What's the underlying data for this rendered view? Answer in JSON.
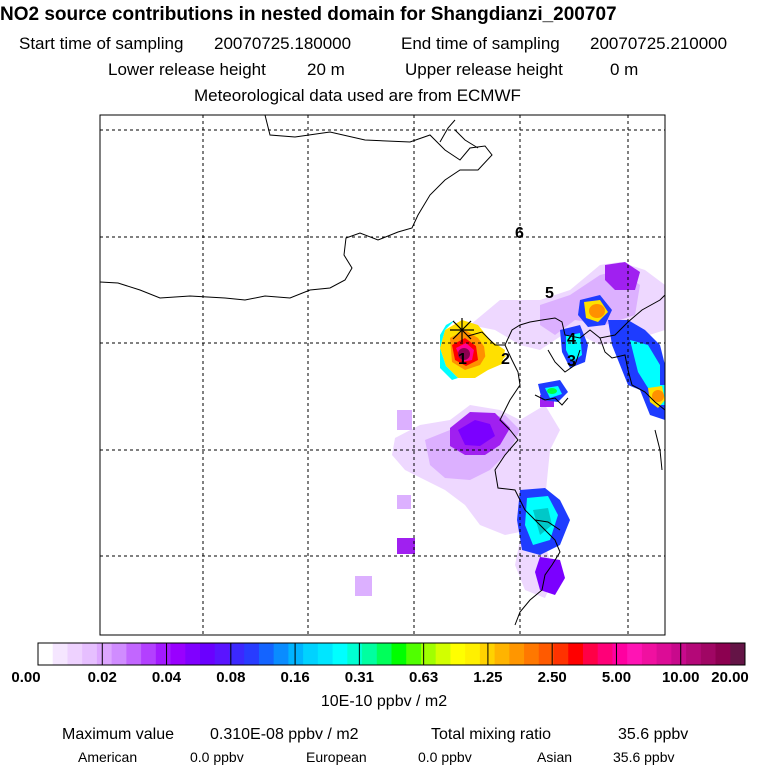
{
  "header": {
    "title": "NO2 source contributions in nested domain for Shangdianzi_200707",
    "start_label": "Start time of sampling",
    "start_value": "20070725.180000",
    "end_label": "End time of sampling",
    "end_value": "20070725.210000",
    "lower_label": "Lower release height",
    "lower_value": "20 m",
    "upper_label": "Upper release height",
    "upper_value": "0 m",
    "met_line": "Meteorological data used are from ECMWF"
  },
  "map": {
    "source_labels": [
      "1",
      "2",
      "3",
      "4",
      "5",
      "6"
    ],
    "colors": {
      "frame": "#000000",
      "grid": "#000000",
      "coast": "#000000",
      "light_lavender": "#f0d8ff",
      "lavender": "#d9a6ff",
      "violet": "#a020f0",
      "purple": "#7b00ff",
      "blue": "#1e3cff",
      "cyan": "#00ffff",
      "teal": "#00c8c8",
      "yellow": "#ffe000",
      "orange": "#ff9000",
      "red": "#ff0000",
      "magenta": "#ff0090",
      "darkmagenta": "#8c0050"
    }
  },
  "colorbar": {
    "labels": [
      "0.00",
      "0.02",
      "0.04",
      "0.08",
      "0.16",
      "0.31",
      "0.63",
      "1.25",
      "2.50",
      "5.00",
      "10.00",
      "20.00"
    ],
    "colors": [
      "#ffffff",
      "#f5e6ff",
      "#eed2ff",
      "#e6bfff",
      "#dda6ff",
      "#d08cff",
      "#c266ff",
      "#b340ff",
      "#a31aff",
      "#9900ff",
      "#8000ff",
      "#6a00ff",
      "#5a14ff",
      "#3c28ff",
      "#283cff",
      "#1464ff",
      "#0a8cff",
      "#00b4ff",
      "#00d2ff",
      "#00e6ff",
      "#00ffff",
      "#00ffd2",
      "#00ffa0",
      "#00ff5a",
      "#00ff00",
      "#50ff00",
      "#a0ff00",
      "#d2ff00",
      "#ffff00",
      "#fff000",
      "#ffd200",
      "#ffb400",
      "#ff9600",
      "#ff7800",
      "#ff5a00",
      "#ff3200",
      "#ff0000",
      "#ff0046",
      "#ff0078",
      "#ff00a0",
      "#ff14b4",
      "#f010a0",
      "#dc0c96",
      "#c80a8c",
      "#b40878",
      "#a00664",
      "#8c0050",
      "#641446"
    ],
    "unit": "10E-10 ppbv / m2"
  },
  "footer": {
    "max_label": "Maximum value",
    "max_value": "0.310E-08 ppbv / m2",
    "total_label": "Total mixing ratio",
    "total_value": "35.6 ppbv",
    "american_label": "American",
    "american_value": "0.0 ppbv",
    "european_label": "European",
    "european_value": "0.0 ppbv",
    "asian_label": "Asian",
    "asian_value": "35.6 ppbv"
  }
}
